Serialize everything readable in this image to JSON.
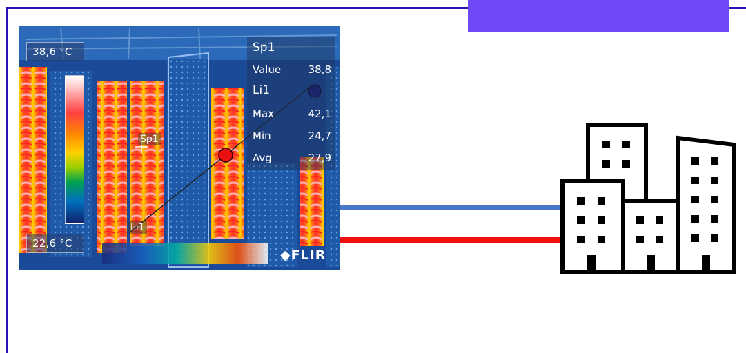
{
  "colors": {
    "frame": "#2a12b8",
    "accent": "#7048f8",
    "pipe_cold": "#4a78c8",
    "pipe_hot": "#ee1010",
    "building": "#000000"
  },
  "thermal": {
    "max_temp": "38,6 °C",
    "min_temp": "22,6 °C",
    "spot_label": "Sp1",
    "line_label": "Li1",
    "logo": "FLIR",
    "panel": {
      "spot_title": "Sp1",
      "value_label": "Value",
      "value": "38,8",
      "line_title": "Li1",
      "max_label": "Max",
      "max_value": "42,1",
      "min_label": "Min",
      "min_value": "24,7",
      "avg_label": "Avg",
      "avg_value": "27,9"
    }
  },
  "icons": {
    "building": "city-buildings-icon",
    "logo": "flir-logo"
  }
}
